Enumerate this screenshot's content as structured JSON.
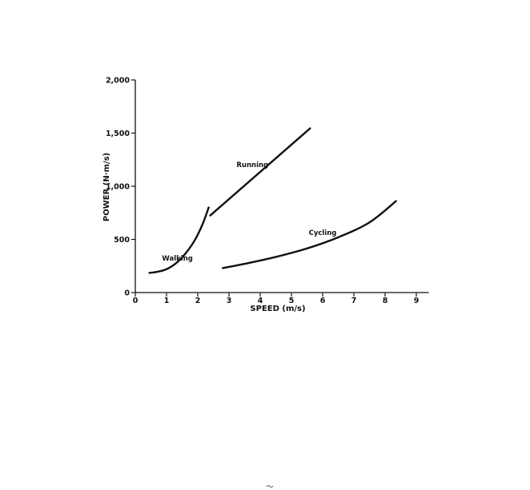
{
  "chart_data": {
    "type": "line",
    "xlabel": "SPEED (m/s)",
    "ylabel": "POWER (N·m/s)",
    "xlim": [
      0,
      9.4
    ],
    "ylim": [
      0,
      2000
    ],
    "x_ticks": [
      0,
      1,
      2,
      3,
      4,
      5,
      6,
      7,
      8,
      9
    ],
    "x_tick_labels": [
      "0",
      "1",
      "2",
      "3",
      "4",
      "5",
      "6",
      "7",
      "8",
      "9"
    ],
    "y_ticks": [
      0,
      500,
      1000,
      1500,
      2000
    ],
    "y_tick_labels": [
      "0",
      "500",
      "1,000",
      "1,500",
      "2,000"
    ],
    "grid": false,
    "series": [
      {
        "name": "Walking",
        "x": [
          0.45,
          0.7,
          1.0,
          1.3,
          1.6,
          1.9,
          2.15,
          2.35
        ],
        "y": [
          185,
          195,
          220,
          275,
          365,
          490,
          640,
          800
        ]
      },
      {
        "name": "Running",
        "x": [
          2.4,
          5.6
        ],
        "y": [
          725,
          1545
        ]
      },
      {
        "name": "Cycling",
        "x": [
          2.8,
          3.5,
          4.5,
          5.5,
          6.5,
          7.5,
          8.35
        ],
        "y": [
          230,
          270,
          335,
          415,
          520,
          660,
          860
        ]
      }
    ]
  },
  "page_mark": "〜"
}
